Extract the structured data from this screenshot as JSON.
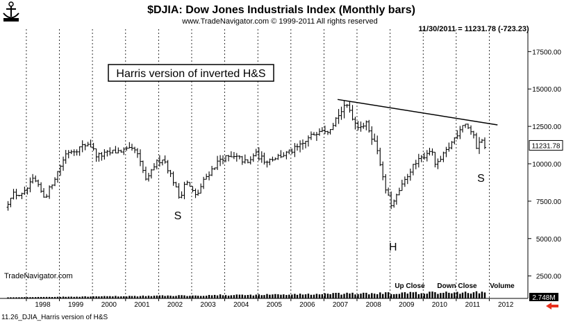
{
  "header": {
    "title": "$DJIA:  Dow Jones Industrials Index  (Monthly bars)",
    "copyright": "www.TradeNavigator.com © 1999-2011 All rights reserved",
    "last_value_readout": "11/30/2011 = 11231.78 (-723.23)"
  },
  "footer": {
    "watermark": "TradeNavigator.com",
    "caption": "11.26_DJIA_Harris version of H&S",
    "volume_value": "2.748M",
    "volume_legend": {
      "up": "Up Close",
      "down": "Down Close",
      "volume": "Volume"
    }
  },
  "colors": {
    "bars": "#000000",
    "price_badge": "#ffffff",
    "volume_arrow": "#e8301e",
    "volume_badge_bg": "#000000"
  },
  "chart_data": {
    "type": "ohlc",
    "title": "$DJIA:  Dow Jones Industrials Index  (Monthly bars)",
    "x_axis": {
      "type": "date",
      "range": [
        "1997-05-01",
        "2012-12-31"
      ],
      "tick_labels": [
        "1998",
        "1999",
        "2000",
        "2001",
        "2002",
        "2003",
        "2004",
        "2005",
        "2006",
        "2007",
        "2008",
        "2009",
        "2010",
        "2011",
        "2012"
      ]
    },
    "y_axis": {
      "side": "right",
      "range": [
        1000,
        19000
      ],
      "tick_labels": [
        "2500.00",
        "5000.00",
        "7500.00",
        "10000.00",
        "12500.00",
        "15000.00",
        "17500.00"
      ],
      "tick_values": [
        2500,
        5000,
        7500,
        10000,
        12500,
        15000,
        17500
      ]
    },
    "grid": {
      "vertical": "dashed"
    },
    "last_price": 11231.78,
    "last_price_label": "11231.78",
    "anchors": [
      [
        "1997-06",
        7100
      ],
      [
        "1997-08",
        8000
      ],
      [
        "1997-12",
        7900
      ],
      [
        "1998-04",
        9000
      ],
      [
        "1998-08",
        7700
      ],
      [
        "1998-12",
        9200
      ],
      [
        "1999-04",
        10800
      ],
      [
        "1999-08",
        11000
      ],
      [
        "1999-12",
        11400
      ],
      [
        "2000-03",
        10500
      ],
      [
        "2000-09",
        10800
      ],
      [
        "2001-01",
        10900
      ],
      [
        "2001-05",
        10900
      ],
      [
        "2001-09",
        8800
      ],
      [
        "2001-12",
        10000
      ],
      [
        "2002-03",
        10400
      ],
      [
        "2002-07",
        8700
      ],
      [
        "2002-09",
        7600
      ],
      [
        "2002-11",
        8900
      ],
      [
        "2003-03",
        7800
      ],
      [
        "2003-06",
        9000
      ],
      [
        "2003-12",
        10400
      ],
      [
        "2004-06",
        10400
      ],
      [
        "2004-10",
        10000
      ],
      [
        "2004-12",
        10700
      ],
      [
        "2005-04",
        10200
      ],
      [
        "2005-12",
        10700
      ],
      [
        "2006-05",
        11200
      ],
      [
        "2006-12",
        12400
      ],
      [
        "2007-03",
        12300
      ],
      [
        "2007-07",
        13400
      ],
      [
        "2007-10",
        13900
      ],
      [
        "2008-01",
        12600
      ],
      [
        "2008-05",
        12600
      ],
      [
        "2008-09",
        10800
      ],
      [
        "2008-11",
        8600
      ],
      [
        "2009-02",
        7100
      ],
      [
        "2009-03",
        7600
      ],
      [
        "2009-09",
        9700
      ],
      [
        "2010-03",
        10800
      ],
      [
        "2010-04",
        11000
      ],
      [
        "2010-06",
        9800
      ],
      [
        "2010-12",
        11500
      ],
      [
        "2011-04",
        12800
      ],
      [
        "2011-05",
        12600
      ],
      [
        "2011-06",
        12400
      ],
      [
        "2011-08",
        11600
      ],
      [
        "2011-09",
        10900
      ],
      [
        "2011-10",
        11900
      ],
      [
        "2011-11",
        11232
      ]
    ],
    "trendline": {
      "from": [
        "2007-06",
        14300
      ],
      "to": [
        "2012-04",
        12600
      ]
    },
    "annotations": [
      {
        "text": "Harris version of inverted H&S",
        "boxed": true
      },
      {
        "text": "S",
        "at": [
          "2002-08",
          6300
        ]
      },
      {
        "text": "H",
        "at": [
          "2009-02",
          4200
        ]
      },
      {
        "text": "S",
        "at": [
          "2011-10",
          8800
        ]
      }
    ]
  }
}
